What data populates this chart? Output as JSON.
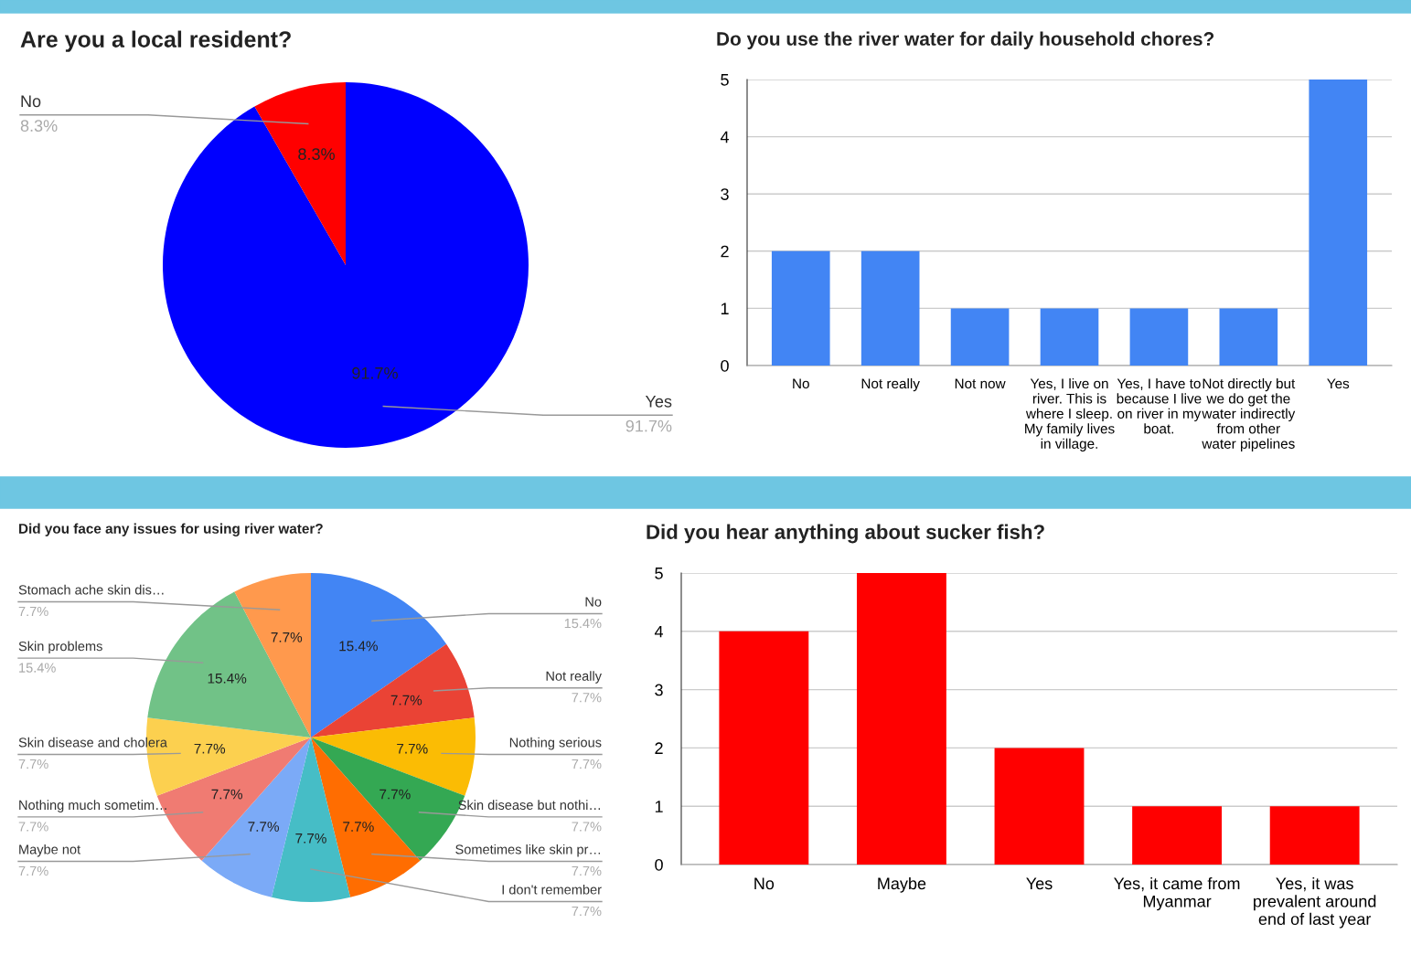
{
  "chart_data": [
    {
      "type": "pie",
      "title": "Are you a local resident?",
      "categories": [
        "Yes",
        "No"
      ],
      "values": [
        91.7,
        8.3
      ],
      "colors": [
        "#0000ff",
        "#ff0000"
      ],
      "value_labels": [
        "91.7%",
        "8.3%"
      ]
    },
    {
      "type": "bar",
      "title": "Do you use the river water for daily household chores?",
      "categories": [
        "No",
        "Not really",
        "Not now",
        "Yes, I live on\nriver. This is\nwhere I sleep.\nMy family lives\nin village.",
        "Yes, I have to\nbecause I live\non river in my\nboat.",
        "Not directly but\nwe do get the\nwater indirectly\nfrom other\nwater pipelines",
        "Yes"
      ],
      "values": [
        2,
        2,
        1,
        1,
        1,
        1,
        5
      ],
      "color": "#4285f4",
      "ylim": [
        0,
        5
      ],
      "yticks": [
        0,
        1,
        2,
        3,
        4,
        5
      ],
      "grid": "y"
    },
    {
      "type": "pie",
      "title": "Did you face any issues for using river water?",
      "categories": [
        "No",
        "Not really",
        "Nothing serious",
        "Skin disease but nothi…",
        "Sometimes like skin pr…",
        "I don't remember",
        "Maybe not",
        "Nothing much sometim…",
        "Skin disease and cholera",
        "Skin problems",
        "Stomach ache skin dis…"
      ],
      "values": [
        15.4,
        7.7,
        7.7,
        7.7,
        7.7,
        7.7,
        7.7,
        7.7,
        7.7,
        15.4,
        7.7
      ],
      "colors": [
        "#4285f4",
        "#ea4335",
        "#fbbc04",
        "#34a853",
        "#ff6d01",
        "#46bdc6",
        "#7baaf7",
        "#f07b72",
        "#fcd04f",
        "#71c287",
        "#ff994d"
      ],
      "value_labels": [
        "15.4%",
        "7.7%",
        "7.7%",
        "7.7%",
        "7.7%",
        "7.7%",
        "7.7%",
        "7.7%",
        "7.7%",
        "15.4%",
        "7.7%"
      ]
    },
    {
      "type": "bar",
      "title": "Did you hear anything about sucker fish?",
      "categories": [
        "No",
        "Maybe",
        "Yes",
        "Yes, it came from\nMyanmar",
        "Yes, it was\nprevalent around\nend of last year"
      ],
      "values": [
        4,
        5,
        2,
        1,
        1
      ],
      "color": "#ff0000",
      "ylim": [
        0,
        5
      ],
      "yticks": [
        0,
        1,
        2,
        3,
        4,
        5
      ],
      "grid": "y"
    }
  ]
}
